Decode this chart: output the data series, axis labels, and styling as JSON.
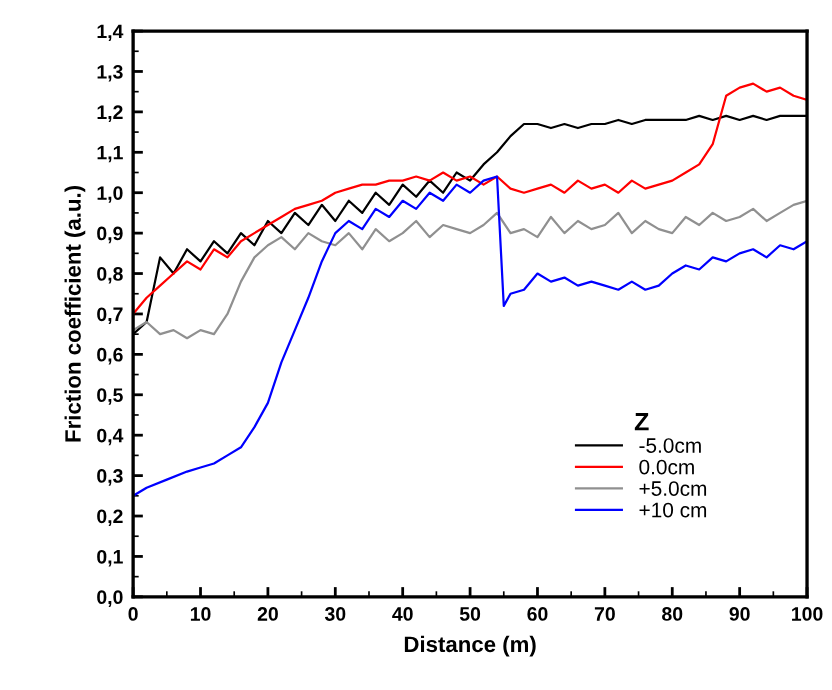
{
  "chart_data": {
    "type": "line",
    "xlabel": "Distance (m)",
    "ylabel": "Friction coefficient (a.u.)",
    "legend_title": "Z",
    "legend": "lower right",
    "grid": false,
    "line_style": "solid",
    "marker": "none",
    "xlim": [
      0,
      100
    ],
    "xticks": [
      0,
      10,
      20,
      30,
      40,
      50,
      60,
      70,
      80,
      90,
      100
    ],
    "ylim": [
      0,
      1.4
    ],
    "yticks": [
      {
        "value": 0,
        "label": "0,0"
      },
      {
        "value": 0.1,
        "label": "0,1"
      },
      {
        "value": 0.2,
        "label": "0,2"
      },
      {
        "value": 0.3,
        "label": "0,3"
      },
      {
        "value": 0.4,
        "label": "0,4"
      },
      {
        "value": 0.5,
        "label": "0,5"
      },
      {
        "value": 0.6,
        "label": "0,6"
      },
      {
        "value": 0.7,
        "label": "0,7"
      },
      {
        "value": 0.8,
        "label": "0,8"
      },
      {
        "value": 0.9,
        "label": "0,9"
      },
      {
        "value": 1.0,
        "label": "1,0"
      },
      {
        "value": 1.1,
        "label": "1,1"
      },
      {
        "value": 1.2,
        "label": "1,2"
      },
      {
        "value": 1.3,
        "label": "1,3"
      },
      {
        "value": 1.4,
        "label": "1,4"
      }
    ],
    "x": [
      0,
      2,
      4,
      6,
      8,
      10,
      12,
      14,
      16,
      18,
      20,
      22,
      24,
      26,
      28,
      30,
      32,
      34,
      36,
      38,
      40,
      42,
      44,
      46,
      48,
      50,
      52,
      54,
      56,
      58,
      60,
      62,
      64,
      66,
      68,
      70,
      72,
      74,
      76,
      78,
      80,
      82,
      84,
      86,
      88,
      90,
      92,
      94,
      96,
      98,
      100
    ],
    "series": [
      {
        "name": "-5.0cm",
        "color": "#000000",
        "values": [
          0.65,
          0.68,
          0.84,
          0.8,
          0.86,
          0.83,
          0.88,
          0.85,
          0.9,
          0.87,
          0.93,
          0.9,
          0.95,
          0.92,
          0.97,
          0.93,
          0.98,
          0.95,
          1.0,
          0.97,
          1.02,
          0.99,
          1.03,
          1.0,
          1.05,
          1.03,
          1.07,
          1.1,
          1.14,
          1.17,
          1.17,
          1.16,
          1.17,
          1.16,
          1.17,
          1.17,
          1.18,
          1.17,
          1.18,
          1.18,
          1.18,
          1.18,
          1.19,
          1.18,
          1.19,
          1.18,
          1.19,
          1.18,
          1.19,
          1.19,
          1.19
        ]
      },
      {
        "name": "0.0cm",
        "color": "#ff0000",
        "values": [
          0.7,
          0.74,
          0.77,
          0.8,
          0.83,
          0.81,
          0.86,
          0.84,
          0.88,
          0.9,
          0.92,
          0.94,
          0.96,
          0.97,
          0.98,
          1.0,
          1.01,
          1.02,
          1.02,
          1.03,
          1.03,
          1.04,
          1.03,
          1.05,
          1.03,
          1.04,
          1.02,
          1.04,
          1.01,
          1.0,
          1.01,
          1.02,
          1.0,
          1.03,
          1.01,
          1.02,
          1.0,
          1.03,
          1.01,
          1.02,
          1.03,
          1.05,
          1.07,
          1.12,
          1.24,
          1.26,
          1.27,
          1.25,
          1.26,
          1.24,
          1.23
        ]
      },
      {
        "name": "+5.0cm",
        "color": "#909090",
        "values": [
          0.66,
          0.68,
          0.65,
          0.66,
          0.64,
          0.66,
          0.65,
          0.7,
          0.78,
          0.84,
          0.87,
          0.89,
          0.86,
          0.9,
          0.88,
          0.87,
          0.9,
          0.86,
          0.91,
          0.88,
          0.9,
          0.93,
          0.89,
          0.92,
          0.91,
          0.9,
          0.92,
          0.95,
          0.9,
          0.91,
          0.89,
          0.94,
          0.9,
          0.93,
          0.91,
          0.92,
          0.95,
          0.9,
          0.93,
          0.91,
          0.9,
          0.94,
          0.92,
          0.95,
          0.93,
          0.94,
          0.96,
          0.93,
          0.95,
          0.97,
          0.98
        ]
      },
      {
        "name": "+10 cm",
        "color": "#0000ff",
        "x": [
          0,
          2,
          5,
          8,
          10,
          12,
          14,
          16,
          18,
          20,
          22,
          24,
          26,
          28,
          30,
          32,
          34,
          36,
          38,
          40,
          42,
          44,
          46,
          48,
          50,
          52,
          54,
          55,
          56,
          58,
          60,
          62,
          64,
          66,
          68,
          70,
          72,
          74,
          76,
          78,
          80,
          82,
          84,
          86,
          88,
          90,
          92,
          94,
          96,
          98,
          100
        ],
        "values": [
          0.25,
          0.27,
          0.29,
          0.31,
          0.32,
          0.33,
          0.35,
          0.37,
          0.42,
          0.48,
          0.58,
          0.66,
          0.74,
          0.83,
          0.9,
          0.93,
          0.91,
          0.96,
          0.94,
          0.98,
          0.96,
          1.0,
          0.98,
          1.02,
          1.0,
          1.03,
          1.04,
          0.72,
          0.75,
          0.76,
          0.8,
          0.78,
          0.79,
          0.77,
          0.78,
          0.77,
          0.76,
          0.78,
          0.76,
          0.77,
          0.8,
          0.82,
          0.81,
          0.84,
          0.83,
          0.85,
          0.86,
          0.84,
          0.87,
          0.86,
          0.88
        ]
      }
    ]
  }
}
